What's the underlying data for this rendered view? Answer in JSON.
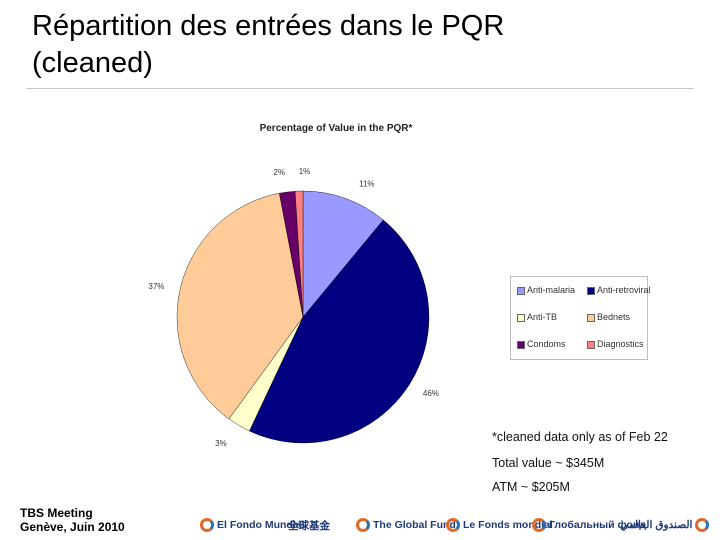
{
  "slide": {
    "title_line1": "Répartition des entrées dans le PQR",
    "title_line2": "(cleaned)"
  },
  "chart_data": {
    "type": "pie",
    "title": "Percentage of Value in the PQR*",
    "start_angle_deg": 0,
    "direction": "clockwise",
    "slices": [
      {
        "label": "Anti-malaria",
        "value": 11,
        "display": "11%",
        "color": "#9999ff"
      },
      {
        "label": "Anti-retroviral",
        "value": 46,
        "display": "46%",
        "color": "#000080"
      },
      {
        "label": "Anti-TB",
        "value": 3,
        "display": "3%",
        "color": "#ffffcc"
      },
      {
        "label": "Bednets",
        "value": 37,
        "display": "37%",
        "color": "#ffcc99"
      },
      {
        "label": "Condoms",
        "value": 2,
        "display": "2%",
        "color": "#660066"
      },
      {
        "label": "Diagnostics",
        "value": 1,
        "display": "1%",
        "color": "#ff8080"
      }
    ],
    "legend_placement": "right",
    "legend_columns": 2
  },
  "notes": {
    "cleaned": "*cleaned data only as of Feb 22",
    "total": "Total value ~ $345M",
    "atm": "ATM ~ $205M"
  },
  "footer": {
    "meeting_line1": "TBS Meeting",
    "meeting_line2": "Genève, Juin 2010",
    "logos": [
      "El Fondo Mundial",
      "全球基金",
      "The Global Fund",
      "Le Fonds mondial",
      "Глобальный фонд",
      "الصندوق العالمي"
    ]
  }
}
